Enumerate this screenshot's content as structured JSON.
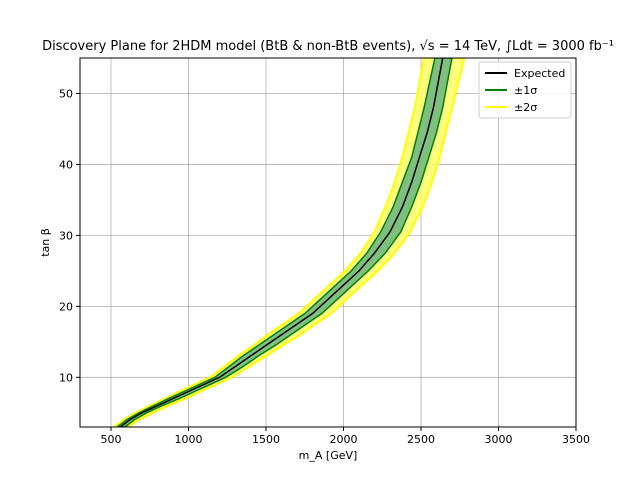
{
  "chart_data": {
    "type": "area",
    "title": "Discovery Plane for 2HDM model (BtB & non-BtB events), √s = 14 TeV, ∫Ldt = 3000 fb⁻¹",
    "xlabel": "m_A [GeV]",
    "ylabel": "tan β",
    "xlim": [
      300,
      3500
    ],
    "ylim": [
      3,
      55
    ],
    "xticks": [
      "500",
      "1000",
      "1500",
      "2000",
      "2500",
      "3000",
      "3500"
    ],
    "yticks": [
      "10",
      "20",
      "30",
      "40",
      "50"
    ],
    "grid": true,
    "legend_position": "top-right",
    "colors": {
      "expected": "#000000",
      "sigma1_line": "#008000",
      "sigma1_fill": "#7fbf7f",
      "sigma2_line": "#ffff00",
      "sigma2_fill": "#ffff66"
    },
    "legend": [
      {
        "label": "Expected",
        "key": "expected"
      },
      {
        "label": "±1σ",
        "key": "sigma1_line"
      },
      {
        "label": "±2σ",
        "key": "sigma2_line"
      }
    ],
    "series": [
      {
        "name": "Expected",
        "points": [
          [
            560,
            3
          ],
          [
            620,
            4
          ],
          [
            700,
            5
          ],
          [
            800,
            6
          ],
          [
            900,
            7
          ],
          [
            1000,
            8
          ],
          [
            1100,
            9
          ],
          [
            1200,
            10
          ],
          [
            1300,
            11.5
          ],
          [
            1400,
            13
          ],
          [
            1500,
            14.5
          ],
          [
            1600,
            16
          ],
          [
            1700,
            17.5
          ],
          [
            1800,
            19
          ],
          [
            1900,
            21
          ],
          [
            2000,
            23
          ],
          [
            2100,
            25
          ],
          [
            2200,
            27.5
          ],
          [
            2300,
            30.5
          ],
          [
            2380,
            34
          ],
          [
            2440,
            37.5
          ],
          [
            2490,
            41
          ],
          [
            2540,
            44.5
          ],
          [
            2580,
            48
          ],
          [
            2610,
            51.5
          ],
          [
            2640,
            55
          ]
        ]
      },
      {
        "name": "±1σ",
        "lower": [
          [
            540,
            3
          ],
          [
            600,
            4
          ],
          [
            680,
            5
          ],
          [
            775,
            6
          ],
          [
            870,
            7
          ],
          [
            970,
            8
          ],
          [
            1070,
            9
          ],
          [
            1170,
            10
          ],
          [
            1260,
            11.5
          ],
          [
            1350,
            13
          ],
          [
            1450,
            14.5
          ],
          [
            1550,
            16
          ],
          [
            1650,
            17.5
          ],
          [
            1750,
            19
          ],
          [
            1850,
            21
          ],
          [
            1950,
            23
          ],
          [
            2050,
            25
          ],
          [
            2150,
            27.5
          ],
          [
            2240,
            30.5
          ],
          [
            2320,
            34
          ],
          [
            2380,
            37.5
          ],
          [
            2440,
            41
          ],
          [
            2480,
            44.5
          ],
          [
            2520,
            48
          ],
          [
            2555,
            51.5
          ],
          [
            2590,
            55
          ]
        ],
        "upper": [
          [
            590,
            3
          ],
          [
            650,
            4
          ],
          [
            730,
            5
          ],
          [
            830,
            6
          ],
          [
            940,
            7
          ],
          [
            1040,
            8
          ],
          [
            1140,
            9
          ],
          [
            1240,
            10
          ],
          [
            1350,
            11.5
          ],
          [
            1450,
            13
          ],
          [
            1560,
            14.5
          ],
          [
            1660,
            16
          ],
          [
            1760,
            17.5
          ],
          [
            1860,
            19
          ],
          [
            1960,
            21
          ],
          [
            2060,
            23
          ],
          [
            2160,
            25
          ],
          [
            2270,
            27.5
          ],
          [
            2370,
            30.5
          ],
          [
            2440,
            34
          ],
          [
            2500,
            37.5
          ],
          [
            2550,
            41
          ],
          [
            2600,
            44.5
          ],
          [
            2640,
            48
          ],
          [
            2670,
            51.5
          ],
          [
            2700,
            55
          ]
        ]
      },
      {
        "name": "±2σ",
        "lower": [
          [
            520,
            3
          ],
          [
            580,
            4
          ],
          [
            660,
            5
          ],
          [
            750,
            6
          ],
          [
            850,
            7
          ],
          [
            940,
            8
          ],
          [
            1040,
            9
          ],
          [
            1140,
            10
          ],
          [
            1230,
            11.5
          ],
          [
            1320,
            13
          ],
          [
            1420,
            14.5
          ],
          [
            1510,
            16
          ],
          [
            1610,
            17.5
          ],
          [
            1710,
            19
          ],
          [
            1810,
            21
          ],
          [
            1910,
            23
          ],
          [
            2010,
            25
          ],
          [
            2110,
            27.5
          ],
          [
            2200,
            30.5
          ],
          [
            2270,
            34
          ],
          [
            2330,
            37.5
          ],
          [
            2380,
            41
          ],
          [
            2420,
            44.5
          ],
          [
            2460,
            48
          ],
          [
            2490,
            51.5
          ],
          [
            2520,
            55
          ]
        ],
        "upper": [
          [
            610,
            3
          ],
          [
            680,
            4
          ],
          [
            770,
            5
          ],
          [
            870,
            6
          ],
          [
            980,
            7
          ],
          [
            1080,
            8
          ],
          [
            1180,
            9
          ],
          [
            1280,
            10
          ],
          [
            1390,
            11.5
          ],
          [
            1500,
            13
          ],
          [
            1610,
            14.5
          ],
          [
            1720,
            16
          ],
          [
            1820,
            17.5
          ],
          [
            1920,
            19
          ],
          [
            2020,
            21
          ],
          [
            2120,
            23
          ],
          [
            2220,
            25
          ],
          [
            2330,
            27.5
          ],
          [
            2430,
            30.5
          ],
          [
            2510,
            34
          ],
          [
            2570,
            37.5
          ],
          [
            2620,
            41
          ],
          [
            2660,
            44.5
          ],
          [
            2700,
            48
          ],
          [
            2740,
            51.5
          ],
          [
            2780,
            55
          ]
        ]
      }
    ]
  }
}
